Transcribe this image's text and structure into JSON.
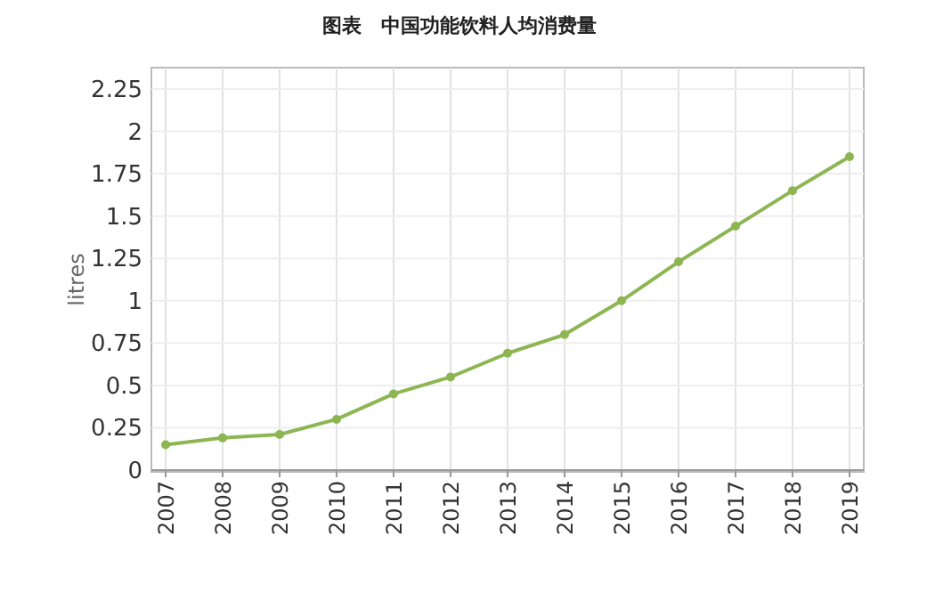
{
  "chart_data": {
    "type": "line",
    "title": "图表　中国功能饮料人均消费量",
    "ylabel": "litres",
    "x": [
      2007,
      2008,
      2009,
      2010,
      2011,
      2012,
      2013,
      2014,
      2015,
      2016,
      2017,
      2018,
      2019
    ],
    "series": [
      {
        "color": "#8db653",
        "values": [
          0.15,
          0.19,
          0.21,
          0.3,
          0.45,
          0.55,
          0.69,
          0.8,
          1.0,
          1.23,
          1.44,
          1.65,
          1.85
        ]
      }
    ],
    "xlim": [
      2007,
      2019
    ],
    "xticks": [
      2007,
      2008,
      2009,
      2010,
      2011,
      2012,
      2013,
      2014,
      2015,
      2016,
      2017,
      2018,
      2019
    ],
    "ylim": [
      0,
      2.25
    ],
    "yticks": [
      0,
      0.25,
      0.5,
      0.75,
      1,
      1.25,
      1.5,
      1.75,
      2,
      2.25
    ],
    "grid": true,
    "marker": "circle"
  }
}
